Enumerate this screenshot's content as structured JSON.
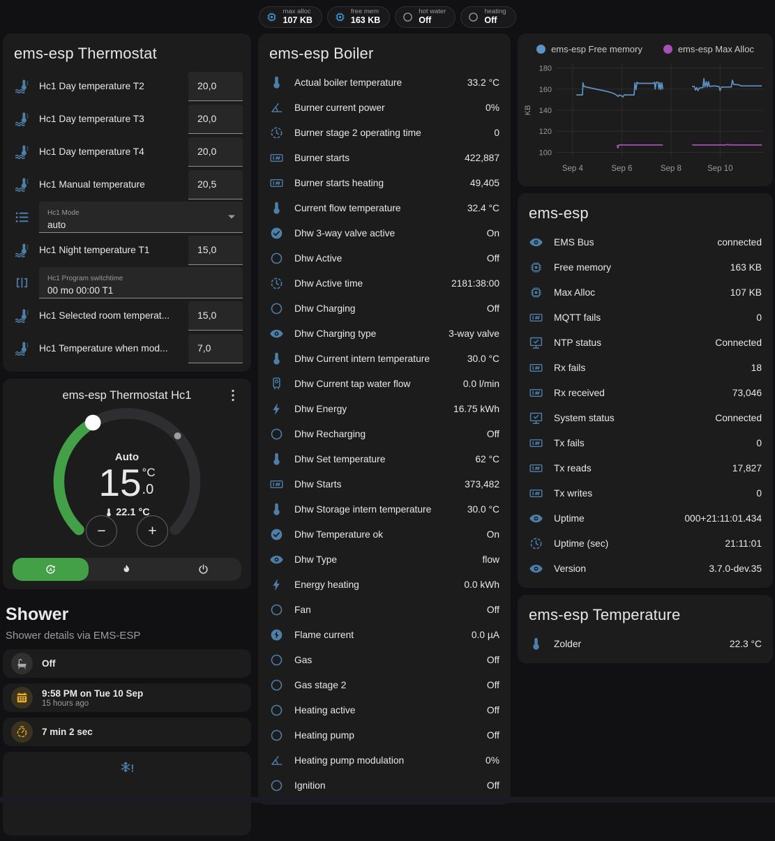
{
  "colors": {
    "green": "#43a047",
    "amber": "#e8ac2d",
    "icon_blue": "#4d7fa8",
    "badge_blue": "#3f9fe0",
    "gray_icon": "#9e9e9e",
    "chart_blue": "#5e92c4",
    "chart_purple": "#a74fb5"
  },
  "badges": [
    {
      "label": "max alloc",
      "value": "107 KB",
      "icon": "chip",
      "color": "blue"
    },
    {
      "label": "free mem",
      "value": "163 KB",
      "icon": "chip",
      "color": "blue"
    },
    {
      "label": "hot water",
      "value": "Off",
      "icon": "circle",
      "color": "gray"
    },
    {
      "label": "heating",
      "value": "Off",
      "icon": "circle",
      "color": "gray"
    }
  ],
  "thermostat_card": {
    "title": "ems-esp Thermostat",
    "rows": [
      {
        "icon": "thermo-water",
        "label": "Hc1 Day temperature T2",
        "type": "number",
        "value": "20,0"
      },
      {
        "icon": "thermo-water",
        "label": "Hc1 Day temperature T3",
        "type": "number",
        "value": "20,0"
      },
      {
        "icon": "thermo-water",
        "label": "Hc1 Day temperature T4",
        "type": "number",
        "value": "20,0"
      },
      {
        "icon": "thermo-water",
        "label": "Hc1 Manual temperature",
        "type": "number",
        "value": "20,5"
      },
      {
        "icon": "list",
        "label": "Hc1 Mode",
        "type": "select",
        "value": "auto"
      },
      {
        "icon": "thermo-water",
        "label": "Hc1 Night temperature T1",
        "type": "number",
        "value": "15,0"
      },
      {
        "icon": "brackets",
        "label": "Hc1 Program switchtime",
        "type": "text",
        "value": "00 mo 00:00 T1"
      },
      {
        "icon": "thermo-water",
        "label": "Hc1 Selected room temperat...",
        "type": "number",
        "value": "15,0"
      },
      {
        "icon": "thermo-water",
        "label": "Hc1 Temperature when mod...",
        "type": "number",
        "value": "7,0"
      }
    ]
  },
  "dial_card": {
    "title": "ems-esp Thermostat Hc1",
    "mode": "Auto",
    "target_int": "15",
    "target_unit": "°C",
    "target_dec": ".0",
    "current": "22.1 °C",
    "minus": "−",
    "plus": "+"
  },
  "shower": {
    "title": "Shower",
    "subtitle": "Shower details via EMS-ESP",
    "items": [
      {
        "icon": "bathtub",
        "color": "gray",
        "primary": "Off"
      },
      {
        "icon": "calendar",
        "color": "amber",
        "primary": "9:58 PM on Tue 10 Sep",
        "secondary": "15 hours ago"
      },
      {
        "icon": "timer",
        "color": "amber",
        "primary": "7 min 2 sec"
      },
      {
        "icon": "snowflake-alert",
        "centered": true
      }
    ]
  },
  "boiler_card": {
    "title": "ems-esp Boiler",
    "rows": [
      {
        "icon": "thermo",
        "label": "Actual boiler temperature",
        "value": "33.2 °C"
      },
      {
        "icon": "angle",
        "label": "Burner current power",
        "value": "0%"
      },
      {
        "icon": "clock",
        "label": "Burner stage 2 operating time",
        "value": "0"
      },
      {
        "icon": "counter",
        "label": "Burner starts",
        "value": "422,887"
      },
      {
        "icon": "counter",
        "label": "Burner starts heating",
        "value": "49,405"
      },
      {
        "icon": "thermo",
        "label": "Current flow temperature",
        "value": "32.4 °C"
      },
      {
        "icon": "check-circle",
        "label": "Dhw 3-way valve active",
        "value": "On"
      },
      {
        "icon": "circle",
        "label": "Dhw Active",
        "value": "Off"
      },
      {
        "icon": "clock",
        "label": "Dhw Active time",
        "value": "2181:38:00"
      },
      {
        "icon": "circle",
        "label": "Dhw Charging",
        "value": "Off"
      },
      {
        "icon": "eye",
        "label": "Dhw Charging type",
        "value": "3-way valve"
      },
      {
        "icon": "thermo",
        "label": "Dhw Current intern temperature",
        "value": "30.0 °C"
      },
      {
        "icon": "boiler",
        "label": "Dhw Current tap water flow",
        "value": "0.0 l/min"
      },
      {
        "icon": "bolt",
        "label": "Dhw Energy",
        "value": "16.75 kWh"
      },
      {
        "icon": "circle",
        "label": "Dhw Recharging",
        "value": "Off"
      },
      {
        "icon": "thermo",
        "label": "Dhw Set temperature",
        "value": "62 °C"
      },
      {
        "icon": "counter",
        "label": "Dhw Starts",
        "value": "373,482"
      },
      {
        "icon": "thermo",
        "label": "Dhw Storage intern temperature",
        "value": "30.0 °C"
      },
      {
        "icon": "check-circle",
        "label": "Dhw Temperature ok",
        "value": "On"
      },
      {
        "icon": "eye",
        "label": "Dhw Type",
        "value": "flow"
      },
      {
        "icon": "bolt",
        "label": "Energy heating",
        "value": "0.0 kWh"
      },
      {
        "icon": "circle",
        "label": "Fan",
        "value": "Off"
      },
      {
        "icon": "bolt-circle",
        "label": "Flame current",
        "value": "0.0 µA"
      },
      {
        "icon": "circle",
        "label": "Gas",
        "value": "Off"
      },
      {
        "icon": "circle",
        "label": "Gas stage 2",
        "value": "Off"
      },
      {
        "icon": "circle",
        "label": "Heating active",
        "value": "Off"
      },
      {
        "icon": "circle",
        "label": "Heating pump",
        "value": "Off"
      },
      {
        "icon": "angle",
        "label": "Heating pump modulation",
        "value": "0%"
      },
      {
        "icon": "circle",
        "label": "Ignition",
        "value": "Off"
      }
    ]
  },
  "ems_card": {
    "title": "ems-esp",
    "rows": [
      {
        "icon": "eye",
        "label": "EMS Bus",
        "value": "connected"
      },
      {
        "icon": "chip",
        "label": "Free memory",
        "value": "163 KB"
      },
      {
        "icon": "chip",
        "label": "Max Alloc",
        "value": "107 KB"
      },
      {
        "icon": "counter",
        "label": "MQTT fails",
        "value": "0"
      },
      {
        "icon": "monitor-check",
        "label": "NTP status",
        "value": "Connected"
      },
      {
        "icon": "counter",
        "label": "Rx fails",
        "value": "18"
      },
      {
        "icon": "counter",
        "label": "Rx received",
        "value": "73,046"
      },
      {
        "icon": "monitor-check",
        "label": "System status",
        "value": "Connected"
      },
      {
        "icon": "counter",
        "label": "Tx fails",
        "value": "0"
      },
      {
        "icon": "counter",
        "label": "Tx reads",
        "value": "17,827"
      },
      {
        "icon": "counter",
        "label": "Tx writes",
        "value": "0"
      },
      {
        "icon": "eye",
        "label": "Uptime",
        "value": "000+21:11:01.434"
      },
      {
        "icon": "clock",
        "label": "Uptime (sec)",
        "value": "21:11:01"
      },
      {
        "icon": "eye",
        "label": "Version",
        "value": "3.7.0-dev.35"
      }
    ]
  },
  "temp_card": {
    "title": "ems-esp Temperature",
    "rows": [
      {
        "icon": "thermo",
        "label": "Zolder",
        "value": "22.3 °C"
      }
    ]
  },
  "chart_data": {
    "type": "line",
    "ylabel": "KB",
    "ylim": [
      95,
      185
    ],
    "yticks": [
      100,
      120,
      140,
      160,
      180
    ],
    "xlim": [
      3.35,
      11.75
    ],
    "xticks": [
      {
        "x": 4,
        "label": "Sep 4"
      },
      {
        "x": 6,
        "label": "Sep 6"
      },
      {
        "x": 8,
        "label": "Sep 8"
      },
      {
        "x": 10,
        "label": "Sep 10"
      }
    ],
    "grid": true,
    "legend_position": "top",
    "series": [
      {
        "name": "ems-esp Free memory",
        "color": "#5e92c4",
        "points": [
          [
            4.15,
            154.5
          ],
          [
            4.4,
            154.5
          ],
          [
            4.42,
            166
          ],
          [
            4.46,
            162.5
          ],
          [
            4.65,
            161.5
          ],
          [
            4.85,
            160.5
          ],
          [
            5.05,
            159.5
          ],
          [
            5.25,
            158.5
          ],
          [
            5.45,
            157.5
          ],
          [
            5.6,
            156.5
          ],
          [
            5.7,
            155.5
          ],
          [
            5.78,
            154.5
          ],
          [
            5.85,
            153
          ],
          [
            5.9,
            154.5
          ],
          [
            6.0,
            153.5
          ],
          [
            6.05,
            152.5
          ],
          [
            6.1,
            154.5
          ],
          [
            6.5,
            154.5
          ],
          [
            6.53,
            166
          ],
          [
            6.58,
            159.5
          ],
          [
            6.62,
            166.5
          ],
          [
            6.68,
            165.5
          ],
          [
            7.28,
            165.5
          ],
          [
            7.33,
            166.5
          ],
          [
            7.36,
            160
          ],
          [
            7.4,
            166.5
          ],
          [
            7.48,
            166.5
          ],
          [
            7.51,
            160
          ],
          [
            7.55,
            166
          ],
          [
            7.59,
            159.5
          ],
          [
            7.63,
            166
          ],
          [
            7.67,
            160
          ],
          null,
          [
            8.86,
            162.5
          ],
          [
            8.95,
            162.5
          ],
          [
            9.0,
            159
          ],
          [
            9.05,
            161.5
          ],
          [
            9.1,
            158.5
          ],
          [
            9.15,
            161
          ],
          [
            9.3,
            161.5
          ],
          [
            9.34,
            170
          ],
          [
            9.38,
            162
          ],
          [
            9.44,
            167
          ],
          [
            9.48,
            162
          ],
          [
            9.53,
            167
          ],
          [
            9.57,
            162.5
          ],
          [
            9.75,
            163
          ],
          [
            9.95,
            162.5
          ],
          [
            10.0,
            158.5
          ],
          [
            10.05,
            162
          ],
          [
            10.45,
            162
          ],
          [
            10.5,
            168.5
          ],
          [
            10.55,
            164.5
          ],
          [
            10.78,
            164
          ],
          [
            10.85,
            163
          ],
          [
            11.7,
            163
          ]
        ]
      },
      {
        "name": "ems-esp Max Alloc",
        "color": "#a74fb5",
        "points": [
          [
            5.81,
            107
          ],
          [
            5.84,
            104
          ],
          [
            5.88,
            107
          ],
          [
            7.67,
            107
          ],
          null,
          [
            8.86,
            107
          ],
          [
            10.25,
            107
          ],
          [
            10.3,
            107.5
          ],
          [
            10.38,
            107
          ],
          [
            11.7,
            107
          ]
        ]
      }
    ]
  }
}
